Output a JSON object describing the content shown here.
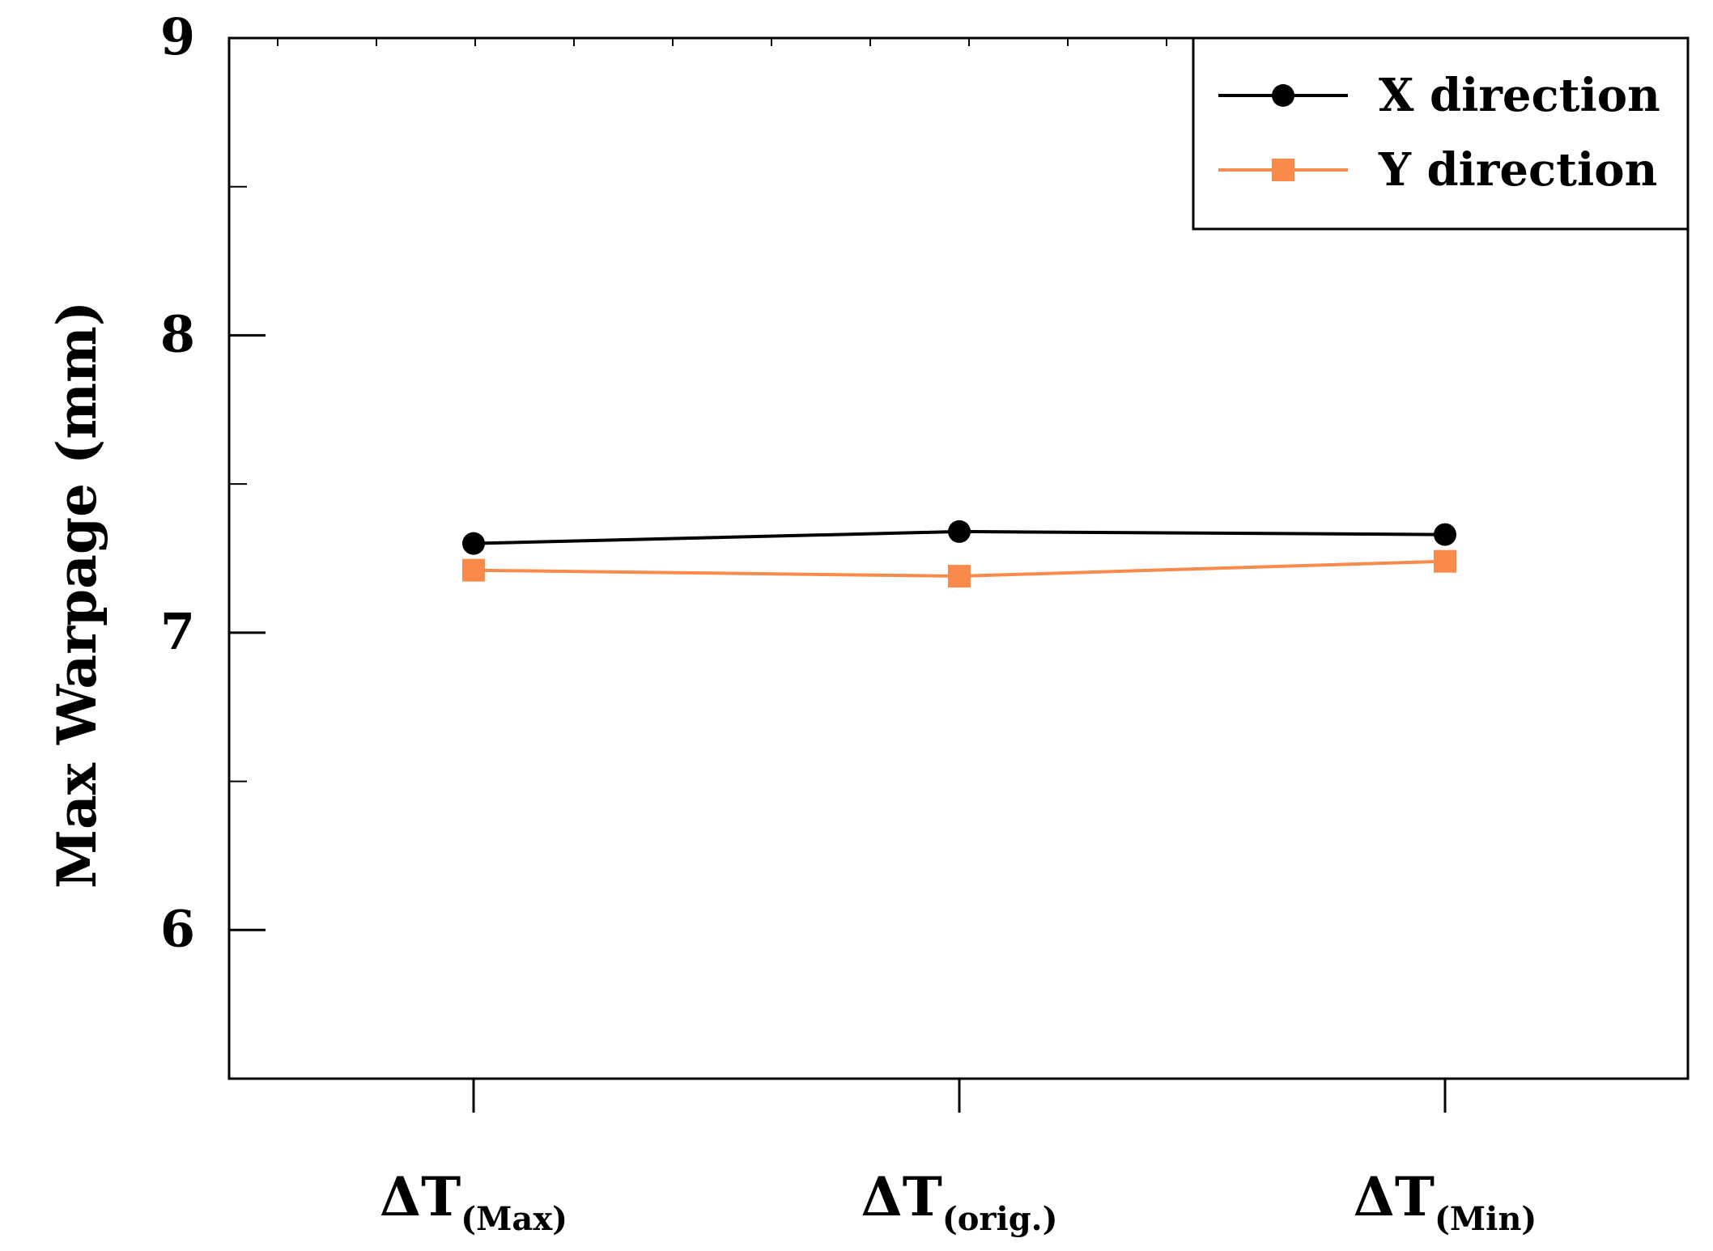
{
  "chart_data": {
    "type": "line",
    "title": "",
    "xlabel": "",
    "ylabel": "Max Warpage (mm)",
    "ylim": [
      5.5,
      9.0
    ],
    "yticks": [
      6,
      7,
      8,
      9
    ],
    "y_minor_step": 0.5,
    "grid": false,
    "legend_position": "top-right",
    "categories": [
      {
        "main": "ΔT",
        "sub": "(Max)"
      },
      {
        "main": "ΔT",
        "sub": "(orig.)"
      },
      {
        "main": "ΔT",
        "sub": "(Min)"
      }
    ],
    "series": [
      {
        "name": "X direction",
        "color": "#000000",
        "marker": "circle",
        "values": [
          7.3,
          7.34,
          7.33
        ]
      },
      {
        "name": "Y direction",
        "color": "#F98A4B",
        "marker": "square",
        "values": [
          7.21,
          7.19,
          7.24
        ]
      }
    ]
  }
}
